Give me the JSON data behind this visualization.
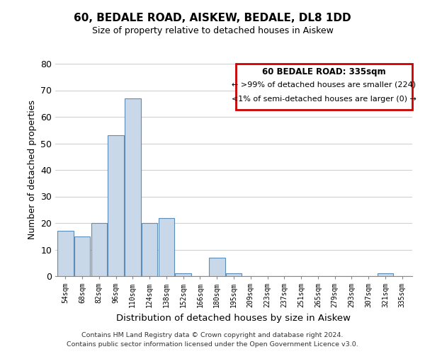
{
  "title": "60, BEDALE ROAD, AISKEW, BEDALE, DL8 1DD",
  "subtitle": "Size of property relative to detached houses in Aiskew",
  "xlabel": "Distribution of detached houses by size in Aiskew",
  "ylabel": "Number of detached properties",
  "bar_color": "#c8d8e8",
  "bar_edge_color": "#5b8db8",
  "bin_labels": [
    "54sqm",
    "68sqm",
    "82sqm",
    "96sqm",
    "110sqm",
    "124sqm",
    "138sqm",
    "152sqm",
    "166sqm",
    "180sqm",
    "195sqm",
    "209sqm",
    "223sqm",
    "237sqm",
    "251sqm",
    "265sqm",
    "279sqm",
    "293sqm",
    "307sqm",
    "321sqm",
    "335sqm"
  ],
  "bar_heights": [
    17,
    15,
    20,
    53,
    67,
    20,
    22,
    1,
    0,
    7,
    1,
    0,
    0,
    0,
    0,
    0,
    0,
    0,
    0,
    1,
    0
  ],
  "ylim": [
    0,
    80
  ],
  "yticks": [
    0,
    10,
    20,
    30,
    40,
    50,
    60,
    70,
    80
  ],
  "legend_title": "60 BEDALE ROAD: 335sqm",
  "legend_line1": "← >99% of detached houses are smaller (224)",
  "legend_line2": "<1% of semi-detached houses are larger (0) →",
  "legend_box_color": "#ffffff",
  "legend_box_edge_color": "#cc0000",
  "footnote1": "Contains HM Land Registry data © Crown copyright and database right 2024.",
  "footnote2": "Contains public sector information licensed under the Open Government Licence v3.0.",
  "background_color": "#ffffff",
  "grid_color": "#d0d0d0"
}
